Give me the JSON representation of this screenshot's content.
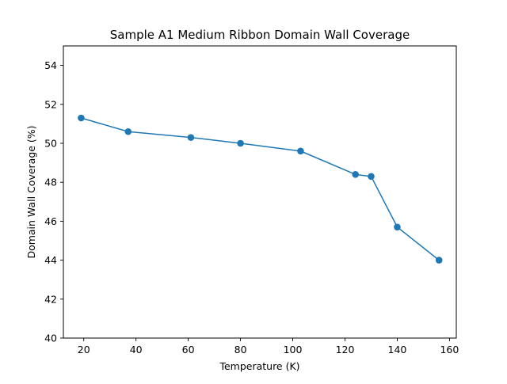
{
  "chart_data": {
    "type": "line",
    "title": "Sample A1 Medium Ribbon Domain Wall Coverage",
    "xlabel": "Temperature (K)",
    "ylabel": "Domain Wall Coverage (%)",
    "xlim": [
      12.2,
      162.6
    ],
    "ylim": [
      40,
      55
    ],
    "xticks": [
      20,
      40,
      60,
      80,
      100,
      120,
      140,
      160
    ],
    "yticks": [
      40,
      42,
      44,
      46,
      48,
      50,
      52,
      54
    ],
    "grid": false,
    "series": [
      {
        "color": "#1f77b4",
        "marker": "circle",
        "x": [
          19,
          37,
          61,
          80,
          103,
          124,
          130,
          140,
          156
        ],
        "y": [
          51.3,
          50.6,
          50.3,
          50.0,
          49.6,
          48.4,
          48.3,
          45.7,
          44.0
        ]
      }
    ]
  }
}
